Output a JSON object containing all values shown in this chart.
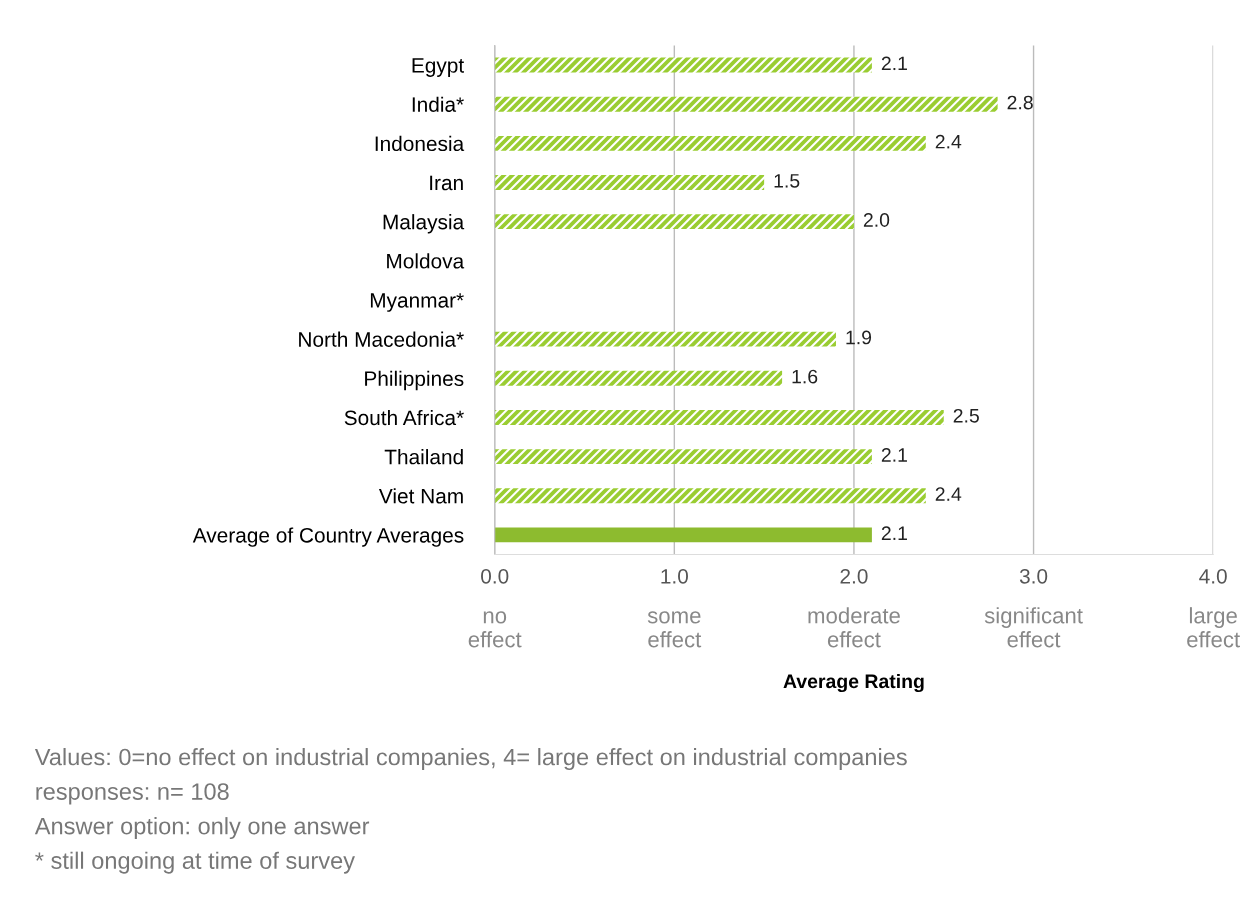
{
  "chart_data": {
    "type": "bar",
    "orientation": "horizontal",
    "categories": [
      "Egypt",
      "India*",
      "Indonesia",
      "Iran",
      "Malaysia",
      "Moldova",
      "Myanmar*",
      "North Macedonia*",
      "Philippines",
      "South Africa*",
      "Thailand",
      "Viet Nam",
      "Average of Country Averages"
    ],
    "values": [
      2.1,
      2.8,
      2.4,
      1.5,
      2.0,
      null,
      null,
      1.9,
      1.6,
      2.5,
      2.1,
      2.4,
      2.1
    ],
    "colors": [
      "#9acd32",
      "#9acd32",
      "#9acd32",
      "#9acd32",
      "#9acd32",
      "#9acd32",
      "#9acd32",
      "#9acd32",
      "#9acd32",
      "#9acd32",
      "#9acd32",
      "#9acd32",
      "#8dbb2f"
    ],
    "value_labels": [
      "2.1",
      "2.8",
      "2.4",
      "1.5",
      "2.0",
      null,
      null,
      "1.9",
      "1.6",
      "2.5",
      "2.1",
      "2.4",
      "2.1"
    ],
    "xlim": [
      0,
      4
    ],
    "xticks": [
      {
        "value": 0,
        "label": "0.0"
      },
      {
        "value": 1,
        "label": "1.0"
      },
      {
        "value": 2,
        "label": "2.0"
      },
      {
        "value": 3,
        "label": "3.0"
      },
      {
        "value": 4,
        "label": "4.0"
      }
    ],
    "xlabel": "Average Rating",
    "grid": "x",
    "legend": false,
    "annotations": [
      "no\neffect",
      "some\neffect",
      "moderate\neffect",
      "significant\neffect",
      "large\neffect",
      "Values: 0=no effect on industrial companies, 4= large effect on industrial companies",
      "responses: n= 108",
      "Answer option: only one answer",
      "* still ongoing at time of survey"
    ]
  }
}
